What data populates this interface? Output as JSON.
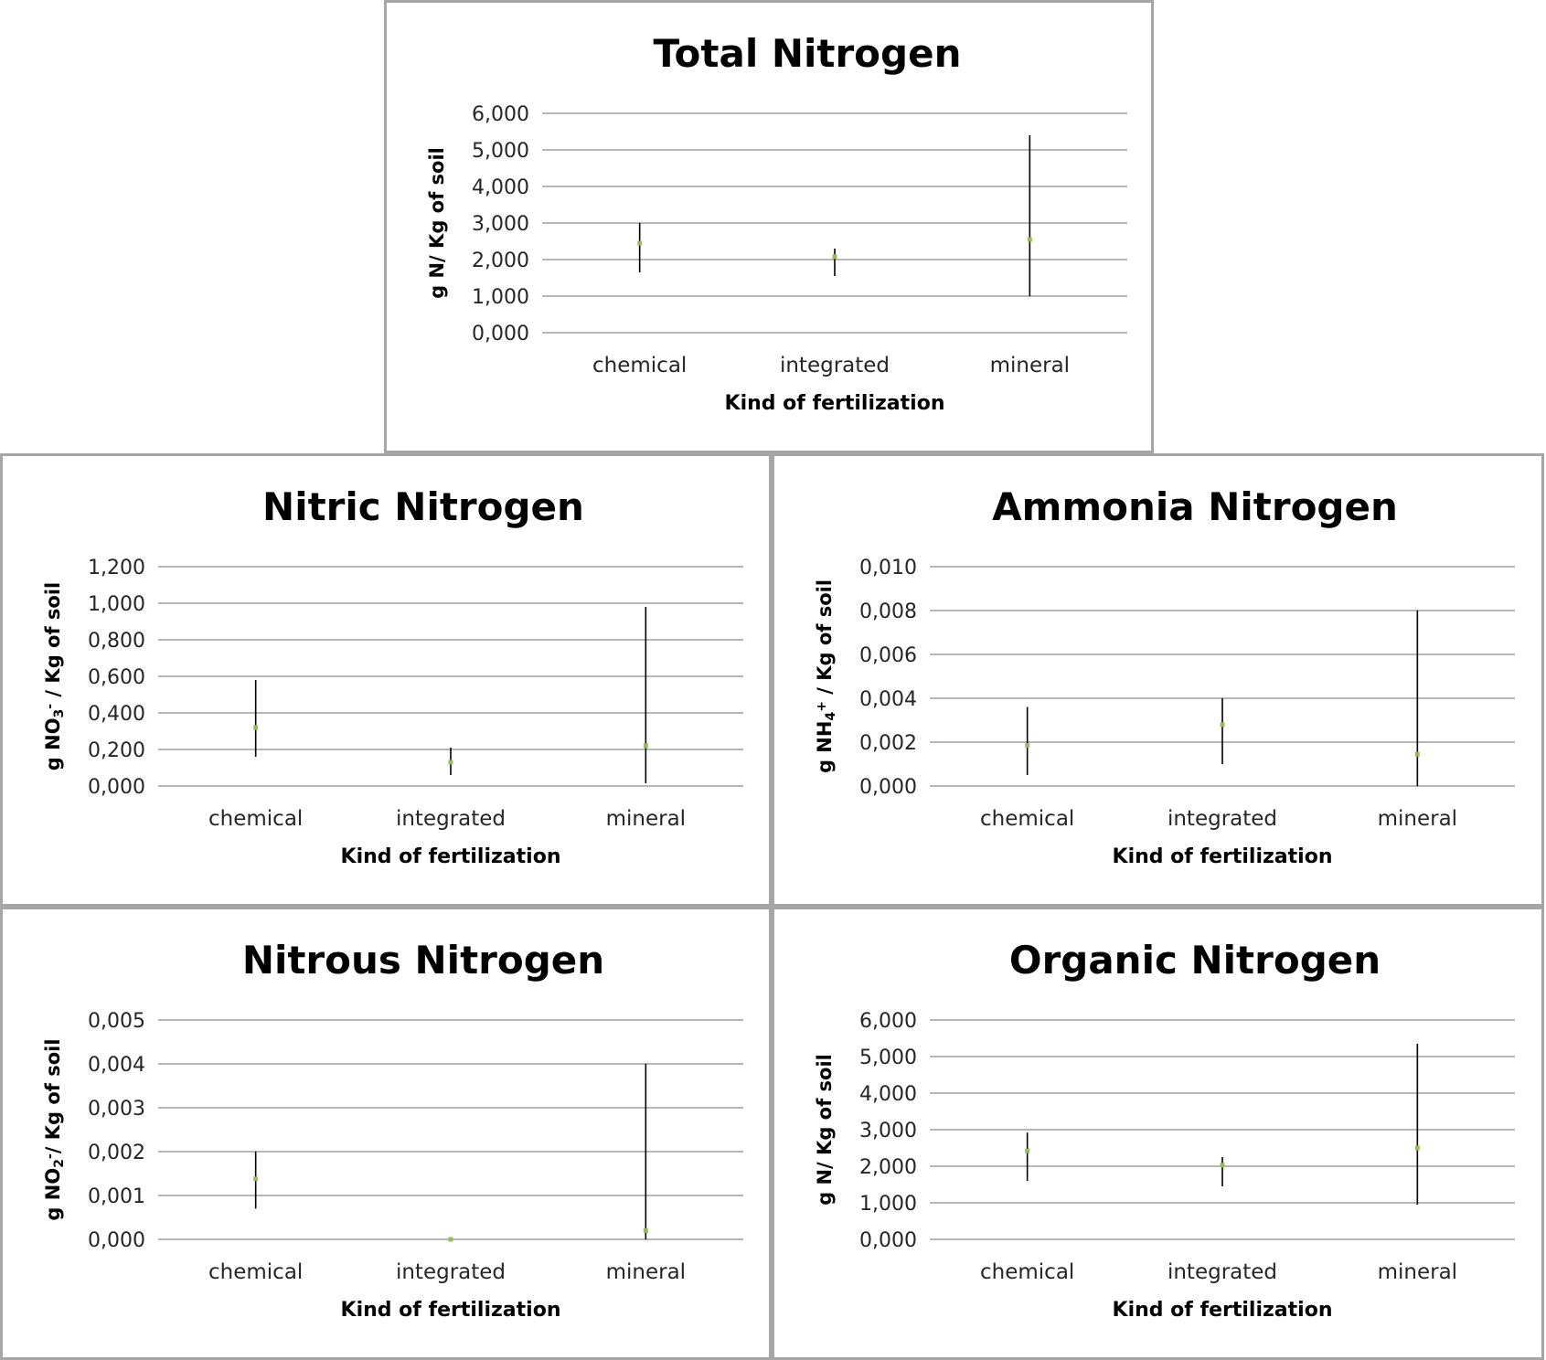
{
  "chart_data": [
    {
      "type": "scatter",
      "title": "Total Nitrogen",
      "xlabel": "Kind of fertilization",
      "ylabel": "g N/ Kg of soil",
      "ylabel_parts": [
        {
          "t": "g N/ Kg of soil"
        }
      ],
      "categories": [
        "chemical",
        "integrated",
        "mineral"
      ],
      "yticks": [
        "0,000",
        "1,000",
        "2,000",
        "3,000",
        "4,000",
        "5,000",
        "6,000"
      ],
      "ylim": [
        0,
        6
      ],
      "grid": true,
      "legend": "none",
      "colors": {
        "point": "#9bbb59",
        "error_bar": "#000000",
        "gridline": "#8c8c8c"
      },
      "series": [
        {
          "values": [
            2.45,
            2.08,
            2.55
          ],
          "err_low": [
            1.65,
            1.55,
            1.0
          ],
          "err_high": [
            3.0,
            2.3,
            5.4
          ]
        }
      ]
    },
    {
      "type": "scatter",
      "title": "Nitric Nitrogen",
      "xlabel": "Kind of fertilization",
      "ylabel": "g NO3- / Kg of soil",
      "ylabel_parts": [
        {
          "t": "g NO"
        },
        {
          "t": "3",
          "sub": true
        },
        {
          "t": "-",
          "sup": true
        },
        {
          "t": " / Kg of soil"
        }
      ],
      "categories": [
        "chemical",
        "integrated",
        "mineral"
      ],
      "yticks": [
        "0,000",
        "0,200",
        "0,400",
        "0,600",
        "0,800",
        "1,000",
        "1,200"
      ],
      "ylim": [
        0,
        1.2
      ],
      "grid": true,
      "legend": "none",
      "colors": {
        "point": "#9bbb59",
        "error_bar": "#000000",
        "gridline": "#8c8c8c"
      },
      "series": [
        {
          "values": [
            0.32,
            0.13,
            0.22
          ],
          "err_low": [
            0.16,
            0.06,
            0.015
          ],
          "err_high": [
            0.58,
            0.21,
            0.98
          ]
        }
      ]
    },
    {
      "type": "scatter",
      "title": "Ammonia Nitrogen",
      "xlabel": "Kind of fertilization",
      "ylabel": "g NH4+ / Kg of soil",
      "ylabel_parts": [
        {
          "t": "g NH"
        },
        {
          "t": "4",
          "sub": true
        },
        {
          "t": "+",
          "sup": true
        },
        {
          "t": " / Kg of soil"
        }
      ],
      "categories": [
        "chemical",
        "integrated",
        "mineral"
      ],
      "yticks": [
        "0,000",
        "0,002",
        "0,004",
        "0,006",
        "0,008",
        "0,010"
      ],
      "ylim": [
        0,
        0.01
      ],
      "grid": true,
      "legend": "none",
      "colors": {
        "point": "#9bbb59",
        "error_bar": "#000000",
        "gridline": "#8c8c8c"
      },
      "series": [
        {
          "values": [
            0.00185,
            0.0028,
            0.00145
          ],
          "err_low": [
            0.0005,
            0.001,
            0.0
          ],
          "err_high": [
            0.0036,
            0.004,
            0.008
          ]
        }
      ]
    },
    {
      "type": "scatter",
      "title": "Nitrous Nitrogen",
      "xlabel": "Kind of fertilization",
      "ylabel": "g NO2- / Kg of soil",
      "ylabel_parts": [
        {
          "t": "g NO"
        },
        {
          "t": "2",
          "sub": true
        },
        {
          "t": "-",
          "sup": true
        },
        {
          "t": "/ Kg of soil"
        }
      ],
      "categories": [
        "chemical",
        "integrated",
        "mineral"
      ],
      "yticks": [
        "0,000",
        "0,001",
        "0,002",
        "0,003",
        "0,004",
        "0,005"
      ],
      "ylim": [
        0,
        0.005
      ],
      "grid": true,
      "legend": "none",
      "colors": {
        "point": "#9bbb59",
        "error_bar": "#000000",
        "gridline": "#8c8c8c"
      },
      "series": [
        {
          "values": [
            0.00138,
            0.0,
            0.0002
          ],
          "err_low": [
            0.0007,
            null,
            0.0
          ],
          "err_high": [
            0.002,
            null,
            0.004
          ]
        }
      ]
    },
    {
      "type": "scatter",
      "title": "Organic Nitrogen",
      "xlabel": "Kind of fertilization",
      "ylabel": "g N/ Kg of soil",
      "ylabel_parts": [
        {
          "t": "g N/ Kg of soil"
        }
      ],
      "categories": [
        "chemical",
        "integrated",
        "mineral"
      ],
      "yticks": [
        "0,000",
        "1,000",
        "2,000",
        "3,000",
        "4,000",
        "5,000",
        "6,000"
      ],
      "ylim": [
        0,
        6
      ],
      "grid": true,
      "legend": "none",
      "colors": {
        "point": "#9bbb59",
        "error_bar": "#000000",
        "gridline": "#8c8c8c"
      },
      "series": [
        {
          "values": [
            2.42,
            2.03,
            2.5
          ],
          "err_low": [
            1.6,
            1.45,
            0.95
          ],
          "err_high": [
            2.92,
            2.25,
            5.35
          ]
        }
      ]
    }
  ]
}
